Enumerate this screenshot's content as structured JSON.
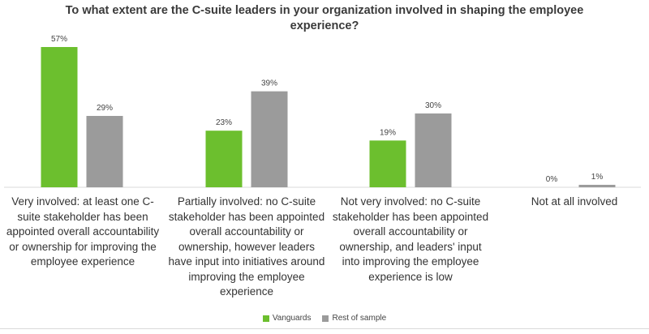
{
  "chart_data": {
    "type": "bar",
    "title": "To what extent are the C-suite leaders in your organization involved in shaping the employee experience?",
    "categories": [
      "Very involved: at least one C-suite stakeholder has been appointed overall accountability or ownership for improving the employee experience",
      "Partially involved: no C-suite stakeholder has been appointed overall accountability or ownership, however leaders have input into initiatives around improving the employee experience",
      "Not very involved: no C-suite stakeholder has been appointed overall accountability or ownership, and leaders' input into improving the employee experience is low",
      "Not at all involved"
    ],
    "series": [
      {
        "name": "Vanguards",
        "values": [
          57,
          23,
          19,
          0
        ],
        "color": "#6cbf2e"
      },
      {
        "name": "Rest of sample",
        "values": [
          29,
          39,
          30,
          1
        ],
        "color": "#9b9b9b"
      }
    ],
    "data_labels": [
      [
        "57%",
        "23%",
        "19%",
        "0%"
      ],
      [
        "29%",
        "39%",
        "30%",
        "1%"
      ]
    ],
    "ylim": [
      0,
      60
    ],
    "legend_position": "bottom",
    "grid": false,
    "xlabel": "",
    "ylabel": ""
  }
}
